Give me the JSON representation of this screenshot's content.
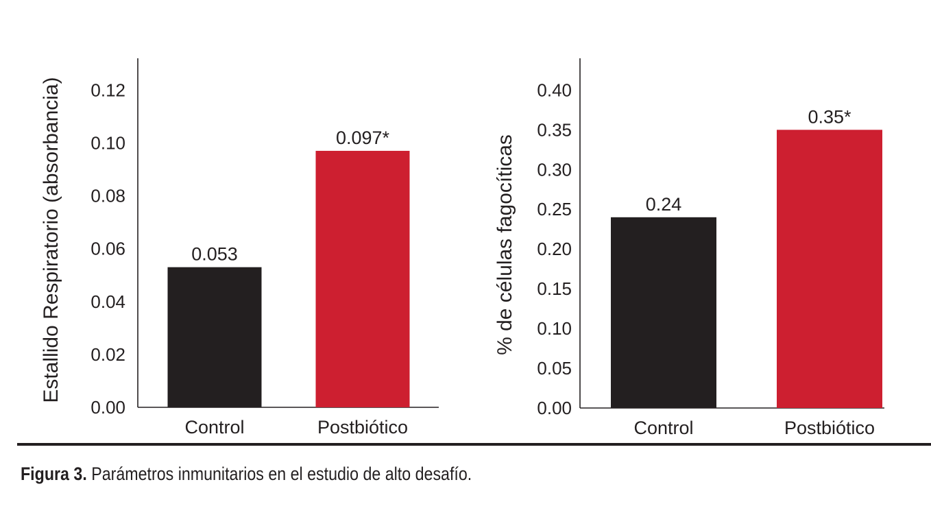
{
  "colors": {
    "control": "#231f20",
    "postbiotic": "#cd1f30",
    "axis": "#231f20"
  },
  "chart_data": [
    {
      "type": "bar",
      "categories": [
        "Control",
        "Postbiótico"
      ],
      "values": [
        0.053,
        0.097
      ],
      "data_labels": [
        "0.053",
        "0.097*"
      ],
      "ylabel": "Estallido Respiratorio (absorbancia)",
      "yticks": [
        "0.00",
        "0.02",
        "0.04",
        "0.06",
        "0.08",
        "0.10",
        "0.12"
      ],
      "ylim": [
        0,
        0.132
      ],
      "grid": false
    },
    {
      "type": "bar",
      "categories": [
        "Control",
        "Postbiótico"
      ],
      "values": [
        0.24,
        0.35
      ],
      "data_labels": [
        "0.24",
        "0.35*"
      ],
      "ylabel": "% de células fagocíticas",
      "yticks": [
        "0.00",
        "0.05",
        "0.10",
        "0.15",
        "0.20",
        "0.25",
        "0.30",
        "0.35",
        "0.40"
      ],
      "ylim": [
        0,
        0.44
      ],
      "grid": false
    }
  ],
  "caption": {
    "lead": "Figura 3.",
    "text": " Parámetros inmunitarios en el estudio de alto desafío."
  }
}
